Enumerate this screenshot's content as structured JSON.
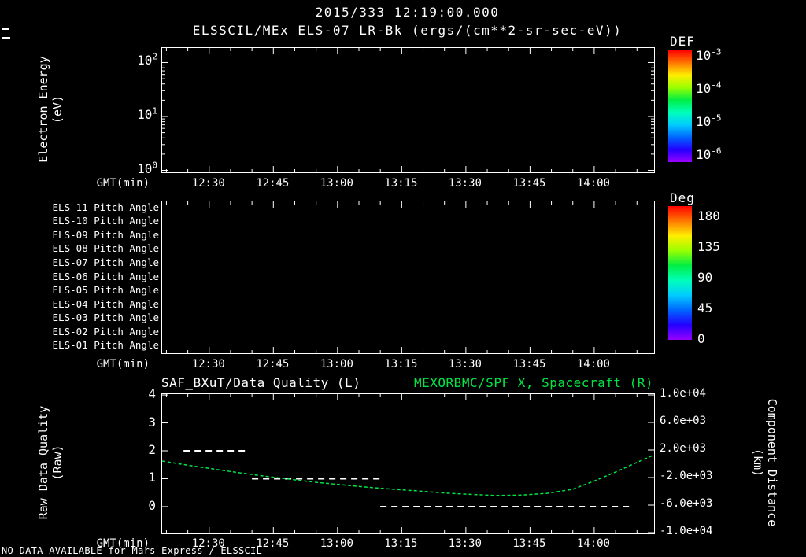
{
  "colors": {
    "background": "#000000",
    "foreground": "#ffffff",
    "accent_green": "#00e345",
    "rainbow_colorbar": [
      "#ff0000",
      "#ff7700",
      "#ffee00",
      "#99ff00",
      "#00ee44",
      "#00ffbb",
      "#00ccff",
      "#0066ff",
      "#2200ff",
      "#9900ff"
    ]
  },
  "header": {
    "datetime_title": "2015/333 12:19:00.000"
  },
  "status_note": "NO DATA AVAILABLE for Mars Express / ELSSCIL",
  "chart_data": [
    {
      "type": "heatmap",
      "name": "electron-energy-spectrogram",
      "title": "ELSSCIL/MEx ELS-07 LR-Bk (ergs/(cm**2-sr-sec-eV))",
      "xlabel": "GMT(min)",
      "ylabel_lines": [
        "Electron Energy",
        "(eV)"
      ],
      "yscale": "log",
      "ylim": [
        0.92,
        186
      ],
      "y_ticks": [
        "10^2",
        "10^1",
        "10^0"
      ],
      "x_range": [
        "12:19",
        "14:14"
      ],
      "x_ticks": [
        "12:30",
        "12:45",
        "13:00",
        "13:15",
        "13:30",
        "13:45",
        "14:00"
      ],
      "x_minor_step_min": 5,
      "colorbar": {
        "title": "DEF",
        "tick_labels": [
          "10^-3",
          "10^-4",
          "10^-5",
          "10^-6"
        ]
      },
      "values": []
    },
    {
      "type": "heatmap",
      "name": "pitch-angle-rows",
      "rows": [
        "ELS-11 Pitch Angle",
        "ELS-10 Pitch Angle",
        "ELS-09 Pitch Angle",
        "ELS-08 Pitch Angle",
        "ELS-07 Pitch Angle",
        "ELS-06 Pitch Angle",
        "ELS-05 Pitch Angle",
        "ELS-04 Pitch Angle",
        "ELS-03 Pitch Angle",
        "ELS-02 Pitch Angle",
        "ELS-01 Pitch Angle"
      ],
      "xlabel": "GMT(min)",
      "x_range": [
        "12:19",
        "14:14"
      ],
      "x_ticks": [
        "12:30",
        "12:45",
        "13:00",
        "13:15",
        "13:30",
        "13:45",
        "14:00"
      ],
      "x_minor_step_min": 5,
      "colorbar": {
        "title": "Deg",
        "tick_labels": [
          "180",
          "135",
          "90",
          "45",
          "0"
        ]
      },
      "values": []
    },
    {
      "type": "line",
      "name": "quality-and-spacecraft-distance",
      "title_left": "SAF_BXuT/Data Quality (L)",
      "title_right": "MEXORBMC/SPF X, Spacecraft (R)",
      "xlabel": "GMT(min)",
      "x_range": [
        "12:19",
        "14:14"
      ],
      "x_ticks": [
        "12:30",
        "12:45",
        "13:00",
        "13:15",
        "13:30",
        "13:45",
        "14:00"
      ],
      "x_minor_step_min": 5,
      "left_axis": {
        "label_lines": [
          "Raw Data Quality",
          "(Raw)"
        ],
        "ticks": [
          "4",
          "3",
          "2",
          "1",
          "0"
        ],
        "lim": [
          -0.96,
          4.03
        ]
      },
      "right_axis": {
        "label_lines": [
          "Component Distance",
          "(km)"
        ],
        "ticks": [
          "1.0e+04",
          "6.0e+03",
          "2.0e+03",
          "-2.0e+03",
          "-6.0e+03",
          "-1.0e+04"
        ],
        "tick_values": [
          10000,
          6000,
          2000,
          -2000,
          -6000,
          -10000
        ],
        "lim": [
          -10114,
          10114
        ]
      },
      "series": [
        {
          "name": "SAF_BXuT/Data Quality",
          "axis": "left",
          "color": "#ffffff",
          "line_style": "dashed",
          "steps": [
            {
              "t_start": "12:24",
              "t_end": "12:39",
              "value": 2
            },
            {
              "t_start": "12:40",
              "t_end": "13:10",
              "value": 1
            },
            {
              "t_start": "13:10",
              "t_end": "14:09",
              "value": 0
            }
          ]
        },
        {
          "name": "MEXORBMC/SPF X Spacecraft",
          "axis": "right",
          "color": "#00e345",
          "line_style": "dashed",
          "points": [
            [
              "12:19",
              400
            ],
            [
              "12:25",
              -200
            ],
            [
              "12:31",
              -750
            ],
            [
              "12:37",
              -1300
            ],
            [
              "12:43",
              -1800
            ],
            [
              "12:49",
              -2250
            ],
            [
              "12:55",
              -2700
            ],
            [
              "13:01",
              -3050
            ],
            [
              "13:07",
              -3400
            ],
            [
              "13:13",
              -3700
            ],
            [
              "13:19",
              -3950
            ],
            [
              "13:25",
              -4250
            ],
            [
              "13:31",
              -4450
            ],
            [
              "13:37",
              -4600
            ],
            [
              "13:43",
              -4550
            ],
            [
              "13:49",
              -4300
            ],
            [
              "13:55",
              -3700
            ],
            [
              "14:00",
              -2500
            ],
            [
              "14:05",
              -1200
            ],
            [
              "14:10",
              200
            ],
            [
              "14:14",
              1300
            ]
          ]
        }
      ]
    }
  ]
}
